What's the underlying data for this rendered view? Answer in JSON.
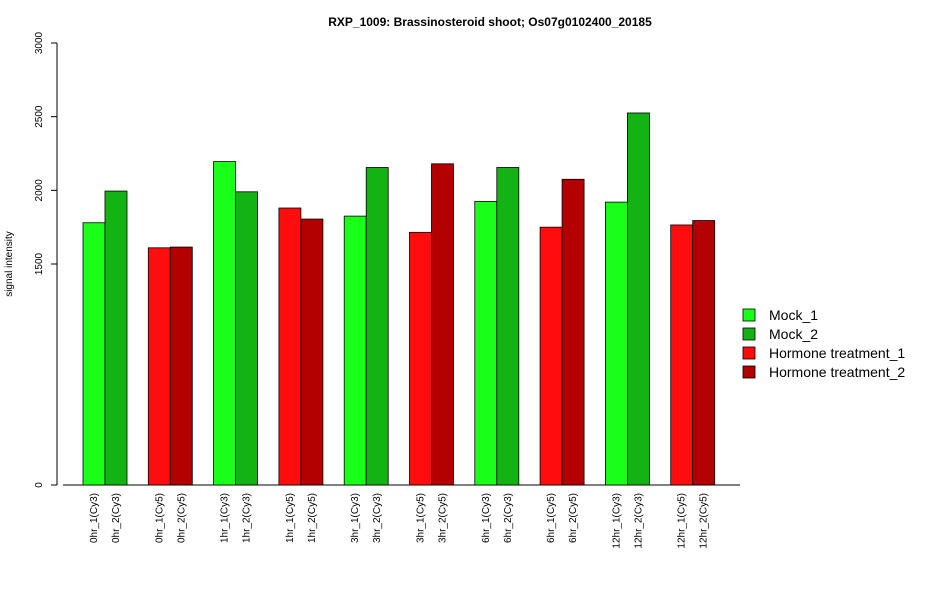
{
  "chart_data": {
    "type": "bar",
    "title": "RXP_1009: Brassinosteroid shoot; Os07g0102400_20185",
    "xlabel": "",
    "ylabel": "signal intensity",
    "y_axis": {
      "scale": "piecewise (broken axis: 0 then 1500-3000)",
      "tick_values": [
        0,
        1500,
        2000,
        2500,
        3000
      ],
      "tick_labels": [
        "0",
        "1500",
        "2000",
        "2500",
        "3000"
      ]
    },
    "ylim": [
      0,
      3000
    ],
    "grid": false,
    "legend_position": "right",
    "categories": [
      "0hr_1(Cy3)",
      "0hr_2(Cy3)",
      "0hr_1(Cy5)",
      "0hr_2(Cy5)",
      "1hr_1(Cy3)",
      "1hr_2(Cy3)",
      "1hr_1(Cy5)",
      "1hr_2(Cy5)",
      "3hr_1(Cy3)",
      "3hr_2(Cy3)",
      "3hr_1(Cy5)",
      "3hr_2(Cy5)",
      "6hr_1(Cy3)",
      "6hr_2(Cy3)",
      "6hr_1(Cy5)",
      "6hr_2(Cy5)",
      "12hr_1(Cy3)",
      "12hr_2(Cy3)",
      "12hr_1(Cy5)",
      "12hr_2(Cy5)"
    ],
    "values": [
      1780,
      1995,
      1610,
      1615,
      2195,
      1990,
      1880,
      1805,
      1825,
      2155,
      1715,
      2180,
      1925,
      2155,
      1750,
      2075,
      1920,
      2525,
      1765,
      1795
    ],
    "series_index": [
      0,
      1,
      2,
      3,
      0,
      1,
      2,
      3,
      0,
      1,
      2,
      3,
      0,
      1,
      2,
      3,
      0,
      1,
      2,
      3
    ],
    "series": [
      {
        "name": "Mock_1",
        "color": "#1aff1a"
      },
      {
        "name": "Mock_2",
        "color": "#12b312"
      },
      {
        "name": "Hormone treatment_1",
        "color": "#ff0d0d"
      },
      {
        "name": "Hormone treatment_2",
        "color": "#b30000"
      }
    ]
  }
}
